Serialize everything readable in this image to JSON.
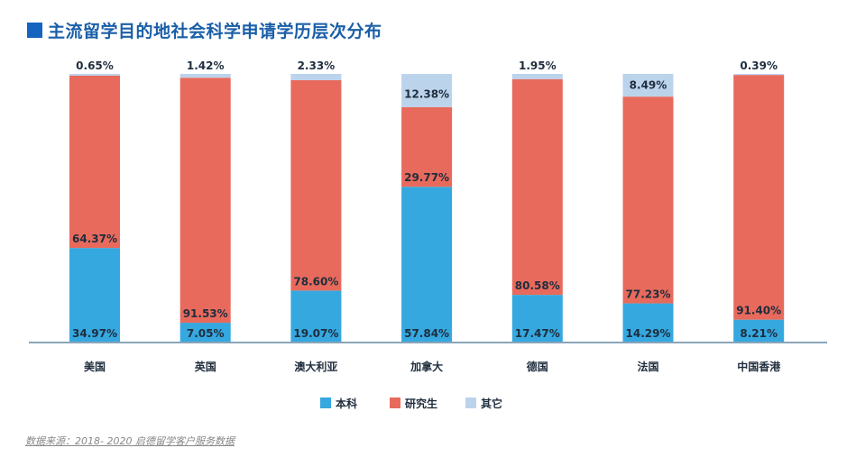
{
  "title": "主流留学目的地社会科学申请学历层次分布",
  "source": "数据来源：2018- 2020 启德留学客户服务数据",
  "colors": {
    "bachelor": "#35a8e0",
    "graduate": "#e86a5c",
    "other": "#bcd3ec",
    "title": "#1a5fa8",
    "axis": "#8aa4b8"
  },
  "chart_data": {
    "type": "bar",
    "stacked": true,
    "title": "主流留学目的地社会科学申请学历层次分布",
    "categories": [
      "美国",
      "英国",
      "澳大利亚",
      "加拿大",
      "德国",
      "法国",
      "中国香港"
    ],
    "series": [
      {
        "name": "本科",
        "values": [
          34.97,
          7.05,
          19.07,
          57.84,
          17.47,
          14.29,
          8.21
        ]
      },
      {
        "name": "研究生",
        "values": [
          64.37,
          91.53,
          78.6,
          29.77,
          80.58,
          77.23,
          91.4
        ]
      },
      {
        "name": "其它",
        "values": [
          0.65,
          1.42,
          2.33,
          12.38,
          1.95,
          8.49,
          0.39
        ]
      }
    ],
    "ylim": [
      0,
      100
    ],
    "legend": "bottom-center",
    "grid": false
  }
}
